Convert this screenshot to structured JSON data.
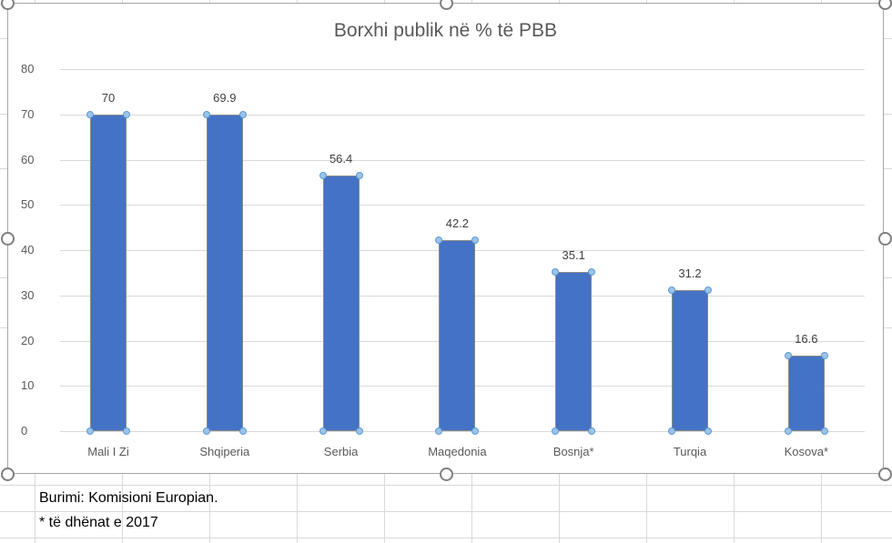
{
  "chart_data": {
    "type": "bar",
    "title": "Borxhi publik në % të PBB",
    "categories": [
      "Mali I Zi",
      "Shqiperia",
      "Serbia",
      "Maqedonia",
      "Bosnja*",
      "Turqia",
      "Kosova*"
    ],
    "values": [
      70,
      69.9,
      56.4,
      42.2,
      35.1,
      31.2,
      16.6
    ],
    "data_labels": [
      "70",
      "69.9",
      "56.4",
      "42.2",
      "35.1",
      "31.2",
      "16.6"
    ],
    "xlabel": "",
    "ylabel": "",
    "ylim": [
      0,
      80
    ],
    "yticks": [
      "0",
      "10",
      "20",
      "30",
      "40",
      "50",
      "60",
      "70",
      "80"
    ],
    "grid": true,
    "legend": "none",
    "bar_color": "#4472c4"
  },
  "sheet": {
    "source_note": "Burimi: Komisioni Europian.",
    "footnote": "* të dhënat e 2017"
  },
  "colors": {
    "bar": "#4472c4",
    "selection_handle": "#5b9bd5",
    "text": "#595959"
  }
}
